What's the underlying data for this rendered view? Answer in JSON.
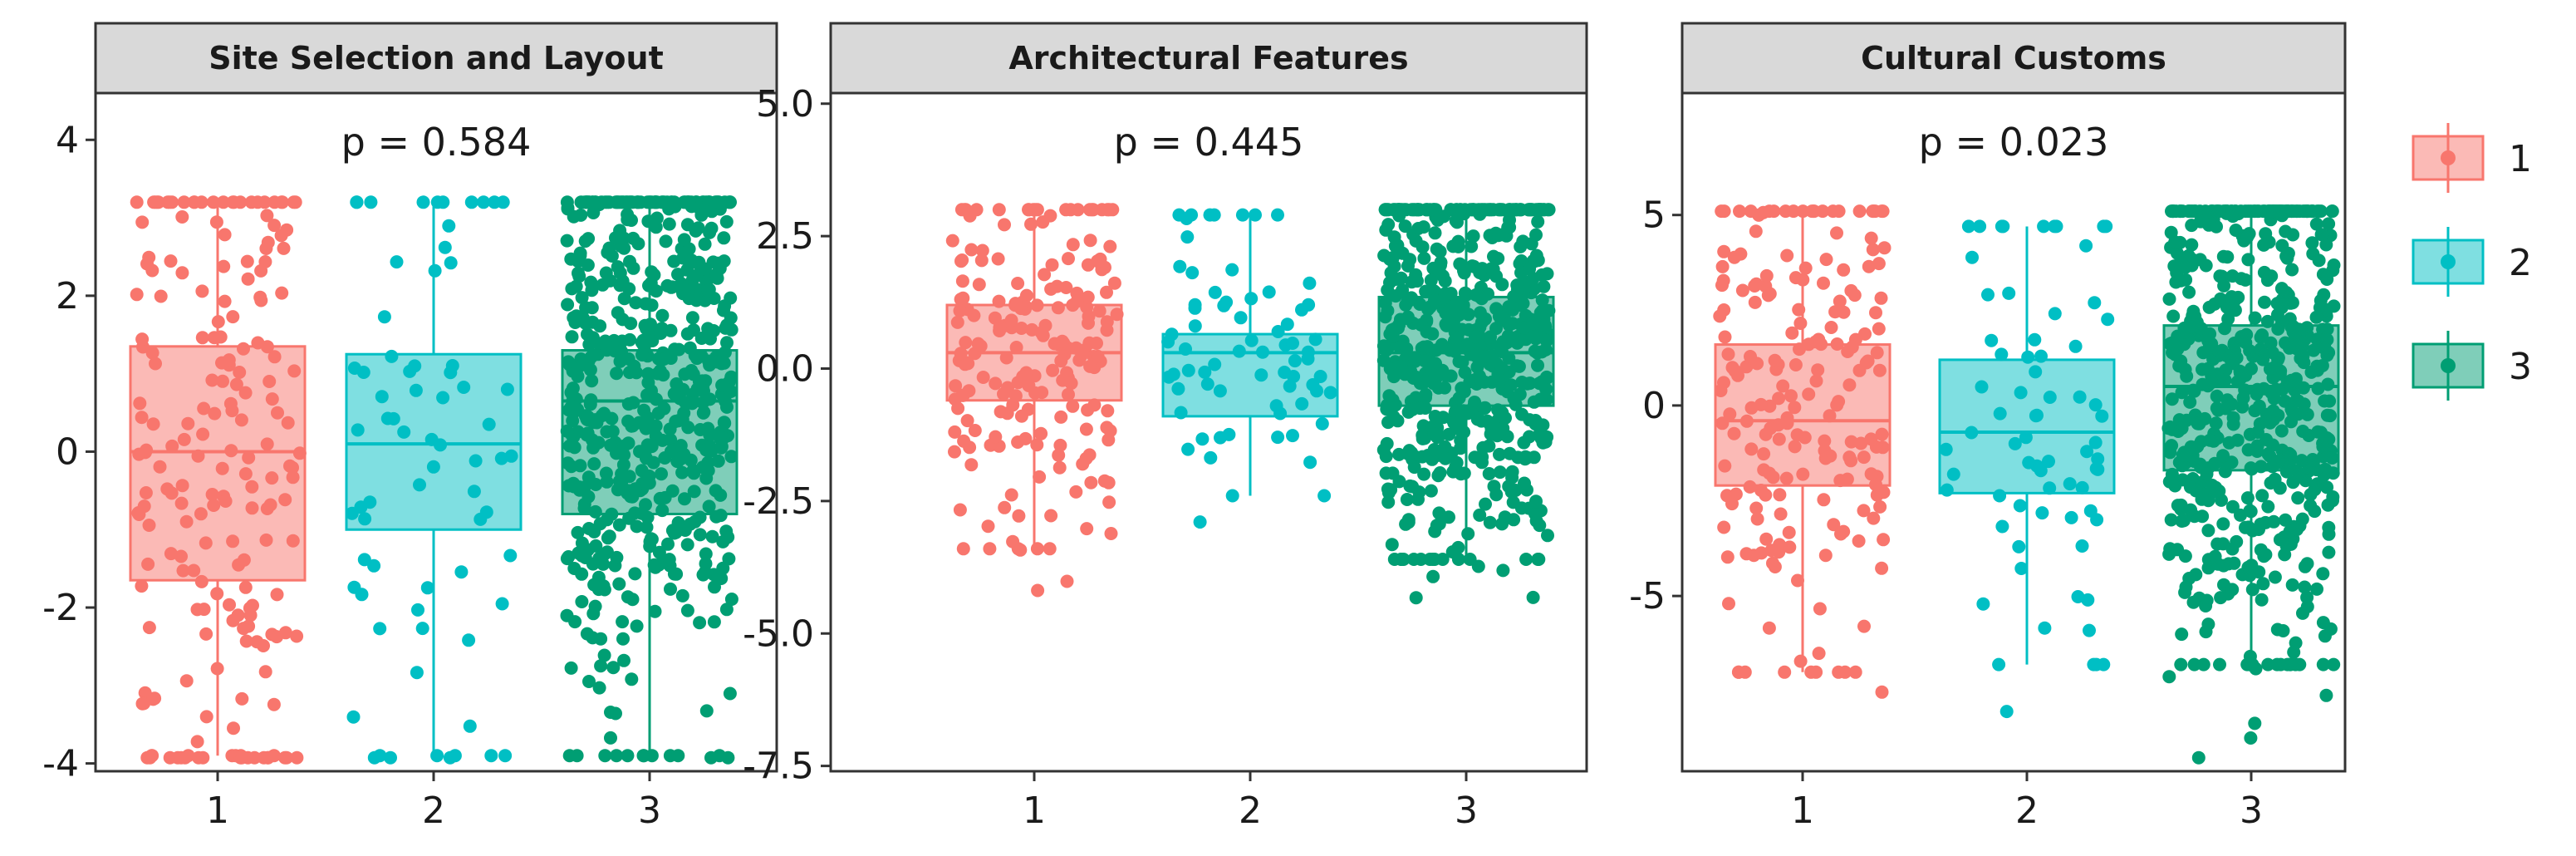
{
  "chart_data": [
    {
      "type": "box",
      "title": "Site Selection and Layout",
      "annotation": "p = 0.584",
      "categories": [
        "1",
        "2",
        "3"
      ],
      "yticks": [
        "4",
        "2",
        "0",
        "-2",
        "-4"
      ],
      "ylim": [
        -4.1,
        4.6
      ],
      "boxes": [
        {
          "group": "1",
          "q1": -1.65,
          "median": 0.0,
          "q3": 1.35,
          "whisker_low": -3.9,
          "whisker_high": 3.2,
          "n_points": 200
        },
        {
          "group": "2",
          "q1": -1.0,
          "median": 0.1,
          "q3": 1.25,
          "whisker_low": -3.9,
          "whisker_high": 3.2,
          "n_points": 70
        },
        {
          "group": "3",
          "q1": -0.8,
          "median": 0.65,
          "q3": 1.3,
          "whisker_low": -3.9,
          "whisker_high": 3.2,
          "n_points": 600
        }
      ]
    },
    {
      "type": "box",
      "title": "Architectural Features",
      "annotation": "p = 0.445",
      "categories": [
        "1",
        "2",
        "3"
      ],
      "yticks": [
        "5.0",
        "2.5",
        "0.0",
        "-2.5",
        "-5.0",
        "-7.5"
      ],
      "ylim": [
        -7.6,
        5.2
      ],
      "boxes": [
        {
          "group": "1",
          "q1": -0.6,
          "median": 0.3,
          "q3": 1.2,
          "whisker_low": -3.4,
          "whisker_high": 3.0,
          "n_points": 200
        },
        {
          "group": "2",
          "q1": -0.9,
          "median": 0.3,
          "q3": 0.65,
          "whisker_low": -2.4,
          "whisker_high": 2.9,
          "n_points": 70
        },
        {
          "group": "3",
          "q1": -0.7,
          "median": 0.3,
          "q3": 1.35,
          "whisker_low": -3.6,
          "whisker_high": 3.0,
          "n_points": 600
        }
      ]
    },
    {
      "type": "box",
      "title": "Cultural Customs",
      "annotation": "p = 0.023",
      "categories": [
        "1",
        "2",
        "3"
      ],
      "yticks": [
        "5",
        "0",
        "-5"
      ],
      "ylim": [
        -9.6,
        8.2
      ],
      "boxes": [
        {
          "group": "1",
          "q1": -2.1,
          "median": -0.4,
          "q3": 1.6,
          "whisker_low": -7.0,
          "whisker_high": 5.1,
          "n_points": 200
        },
        {
          "group": "2",
          "q1": -2.3,
          "median": -0.7,
          "q3": 1.2,
          "whisker_low": -6.8,
          "whisker_high": 4.7,
          "n_points": 70
        },
        {
          "group": "3",
          "q1": -1.7,
          "median": 0.5,
          "q3": 2.1,
          "whisker_low": -6.8,
          "whisker_high": 5.1,
          "n_points": 600
        }
      ]
    }
  ],
  "legend": {
    "position": "right",
    "items": [
      {
        "label": "1",
        "color": "#F8766D"
      },
      {
        "label": "2",
        "color": "#00BFC4"
      },
      {
        "label": "3",
        "color": "#009E73"
      }
    ]
  },
  "colors": {
    "1": "#F8766D",
    "2": "#00BFC4",
    "3": "#009E73",
    "strip_background": "#D9D9D9",
    "panel_border": "#333333"
  }
}
